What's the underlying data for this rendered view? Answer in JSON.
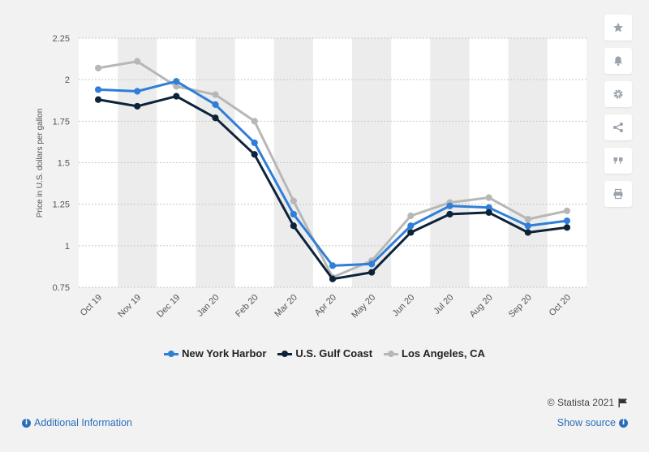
{
  "chart_data": {
    "type": "line",
    "title": "",
    "xlabel": "",
    "ylabel": "Price in U.S. dollars per gallon",
    "ylim": [
      0.75,
      2.25
    ],
    "yticks": [
      "0.75",
      "1",
      "1.25",
      "1.5",
      "1.75",
      "2",
      "2.25"
    ],
    "categories": [
      "Oct 19",
      "Nov 19",
      "Dec 19",
      "Jan 20",
      "Feb 20",
      "Mar 20",
      "Apr 20",
      "May 20",
      "Jun 20",
      "Jul 20",
      "Aug 20",
      "Sep 20",
      "Oct 20"
    ],
    "series": [
      {
        "name": "New York Harbor",
        "color": "#2f7ed8",
        "values": [
          1.94,
          1.93,
          1.99,
          1.85,
          1.62,
          1.19,
          0.88,
          0.89,
          1.12,
          1.24,
          1.23,
          1.12,
          1.15
        ]
      },
      {
        "name": "U.S. Gulf Coast",
        "color": "#0d233a",
        "values": [
          1.88,
          1.84,
          1.9,
          1.77,
          1.55,
          1.12,
          0.8,
          0.84,
          1.08,
          1.19,
          1.2,
          1.08,
          1.11
        ]
      },
      {
        "name": "Los Angeles, CA",
        "color": "#b7b7b7",
        "values": [
          2.07,
          2.11,
          1.96,
          1.91,
          1.75,
          1.27,
          0.81,
          0.91,
          1.18,
          1.26,
          1.29,
          1.16,
          1.21
        ]
      }
    ],
    "legend_position": "bottom",
    "grid": true
  },
  "tools": [
    "star-icon",
    "bell-icon",
    "gear-icon",
    "share-icon",
    "quote-icon",
    "print-icon"
  ],
  "credit": "© Statista 2021",
  "footer": {
    "additional_info": "Additional Information",
    "show_source": "Show source"
  }
}
